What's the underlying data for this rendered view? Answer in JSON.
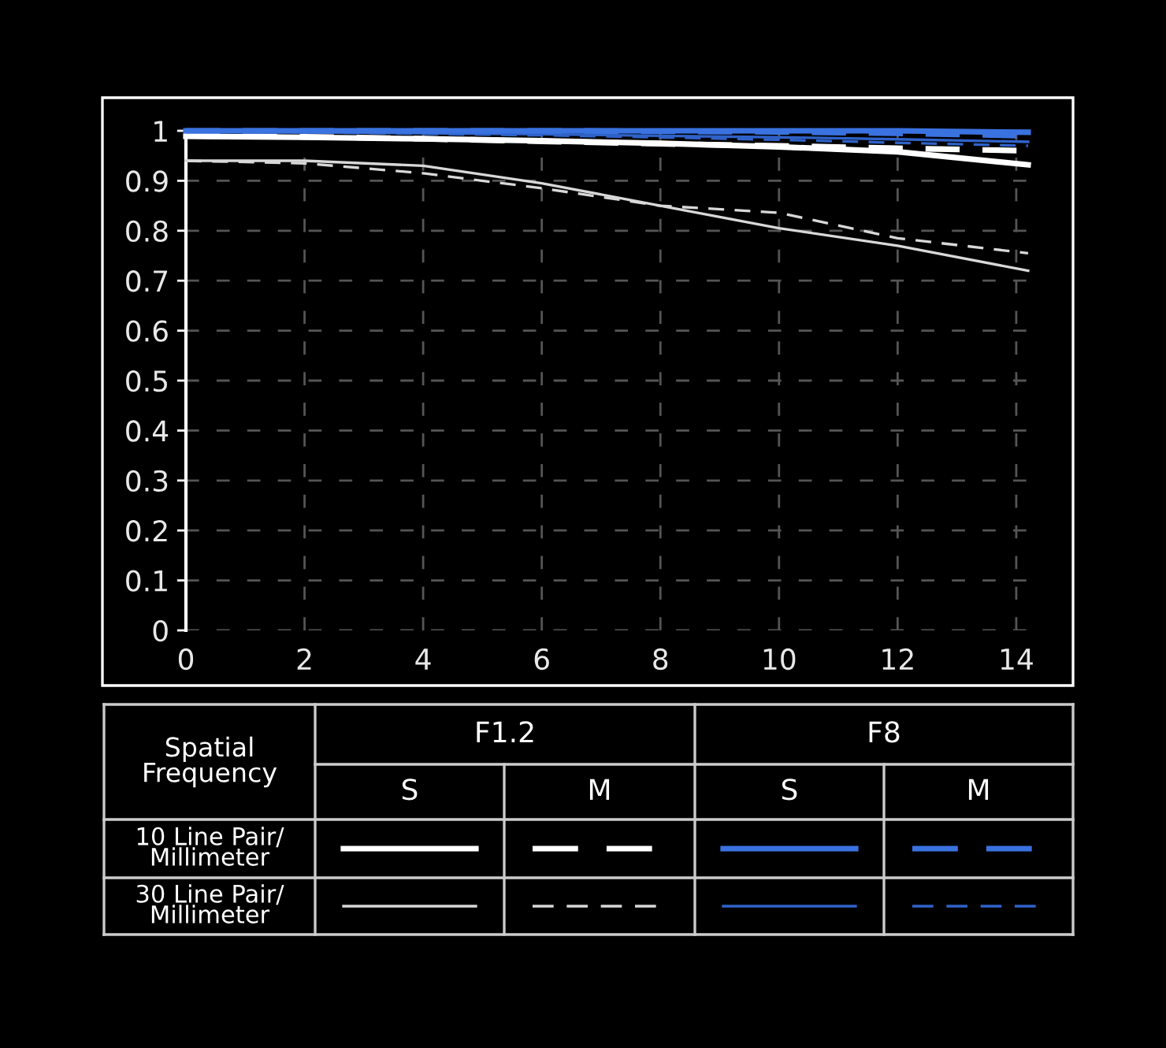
{
  "chart_data": {
    "type": "line",
    "x": [
      0,
      2,
      4,
      6,
      8,
      10,
      12,
      14.2
    ],
    "xlim": [
      0,
      14.2
    ],
    "ylim": [
      0,
      1
    ],
    "xticks": [
      0,
      2,
      4,
      6,
      8,
      10,
      12,
      14
    ],
    "yticks": [
      0,
      {
        "value": 0.1,
        "label": "0.1"
      },
      {
        "value": 0.2,
        "label": "0.2"
      },
      {
        "value": 0.3,
        "label": "0.3"
      },
      {
        "value": 0.4,
        "label": "0.4"
      },
      {
        "value": 0.5,
        "label": "0.5"
      },
      {
        "value": 0.6,
        "label": "0.6"
      },
      {
        "value": 0.7,
        "label": "0.7"
      },
      {
        "value": 0.8,
        "label": "0.8"
      },
      {
        "value": 0.9,
        "label": "0.9"
      },
      1
    ],
    "grid": true,
    "marker": "none",
    "series": [
      {
        "color": "#ffffff",
        "line_style": "solid",
        "values": [
          0.989,
          0.987,
          0.984,
          0.98,
          0.975,
          0.968,
          0.958,
          0.932
        ]
      },
      {
        "color": "#ffffff",
        "line_style": "dashed",
        "values": [
          0.99,
          0.988,
          0.984,
          0.979,
          0.974,
          0.97,
          0.965,
          0.96
        ]
      },
      {
        "color": "#3a72e0",
        "line_style": "solid",
        "values": [
          1.0,
          1.0,
          1.0,
          1.0,
          1.0,
          1.0,
          1.0,
          0.997
        ]
      },
      {
        "color": "#3a72e0",
        "line_style": "dashed",
        "values": [
          1.0,
          1.0,
          1.0,
          1.0,
          0.999,
          0.998,
          0.995,
          0.99
        ]
      },
      {
        "color": "#d8d8d8",
        "line_style": "solid",
        "values": [
          0.94,
          0.94,
          0.93,
          0.895,
          0.85,
          0.805,
          0.77,
          0.72
        ]
      },
      {
        "color": "#d8d8d8",
        "line_style": "dashed",
        "values": [
          0.94,
          0.935,
          0.915,
          0.885,
          0.85,
          0.836,
          0.785,
          0.755
        ]
      },
      {
        "color": "#2f62c8",
        "line_style": "solid",
        "values": [
          0.998,
          0.997,
          0.995,
          0.993,
          0.99,
          0.987,
          0.983,
          0.978
        ]
      },
      {
        "color": "#2f62c8",
        "line_style": "dashed",
        "values": [
          0.998,
          0.997,
          0.994,
          0.991,
          0.987,
          0.982,
          0.976,
          0.97
        ]
      }
    ],
    "annotations": [
      "Spatial\nFrequency",
      "F1.2",
      "F8",
      "S",
      "M",
      "S",
      "M",
      "10 Line Pair/\nMillimeter",
      "30 Line Pair/\nMillimeter"
    ]
  }
}
